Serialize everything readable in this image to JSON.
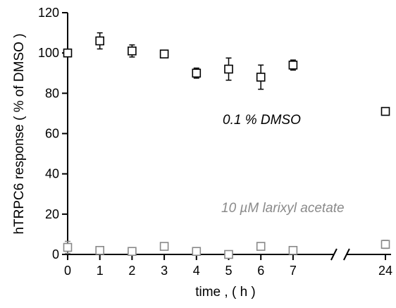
{
  "chart_data": {
    "type": "scatter",
    "title": "",
    "xlabel": "time ,  ( h )",
    "ylabel": "hTRPC6 response ( % of DMSO )",
    "ylim": [
      0,
      120
    ],
    "yticks": [
      0,
      20,
      40,
      60,
      80,
      100,
      120
    ],
    "xticks": [
      0,
      1,
      2,
      3,
      4,
      5,
      6,
      7,
      24
    ],
    "x_axis_break": [
      7,
      24
    ],
    "grid": false,
    "series": [
      {
        "name": "0.1 % DMSO",
        "color": "#000000",
        "x": [
          0,
          1,
          2,
          3,
          4,
          5,
          6,
          7,
          24
        ],
        "y": [
          100,
          106,
          101,
          99.5,
          90,
          92,
          88,
          94,
          71
        ],
        "err": [
          0,
          4,
          3,
          0,
          2.5,
          5.5,
          6,
          2.5,
          0
        ]
      },
      {
        "name": "10 µM larixyl acetate",
        "color": "#888888",
        "x": [
          0,
          1,
          2,
          3,
          4,
          5,
          6,
          7,
          24
        ],
        "y": [
          3.5,
          2,
          1.5,
          4,
          1.5,
          0,
          4,
          2,
          5
        ],
        "err": [
          3,
          0,
          0,
          0,
          0,
          0,
          0,
          0,
          2
        ]
      }
    ]
  }
}
